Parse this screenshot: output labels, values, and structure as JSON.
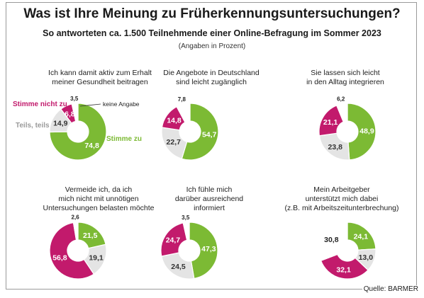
{
  "header": {
    "title": "Was ist Ihre Meinung zu Früherkennungsuntersuchungen?",
    "subtitle": "So antworteten ca. 1.500 Teilnehmende einer Online-Befragung im Sommer 2023",
    "note": "(Angaben in Prozent)"
  },
  "colors": {
    "stimme_zu": "#7cba34",
    "teils_teils": "#e4e4e4",
    "stimme_nicht_zu": "#c21a6c",
    "keine_angabe": "#ffffff"
  },
  "legend": {
    "stimme_zu": "Stimme zu",
    "teils_teils": "Teils, teils",
    "stimme_nicht_zu": "Stimme nicht zu",
    "keine_angabe": "keine Angabe"
  },
  "questions": [
    "Ich kann damit aktiv zum Erhalt\nmeiner Gesundheit beitragen",
    "Die Angebote in Deutschland\nsind leicht zugänglich",
    "Sie lassen sich leicht\nin den Alltag integrieren",
    "Vermeide ich, da ich\nmich nicht mit unnötigen\nUntersuchungen belasten möchte",
    "Ich fühle mich\ndarüber ausreichend\ninformiert",
    "Mein Arbeitgeber\nunterstützt mich dabei\n(z.B. mit Arbeitszeitunterbrechung)"
  ],
  "chart_data": [
    {
      "type": "pie",
      "title": "Ich kann damit aktiv zum Erhalt meiner Gesundheit beitragen",
      "categories": [
        "Stimme zu",
        "Teils, teils",
        "Stimme nicht zu",
        "keine Angabe"
      ],
      "values": [
        74.8,
        14.9,
        6.8,
        3.5
      ],
      "labels": [
        "74,8",
        "14,9",
        "6,8",
        "3,5"
      ]
    },
    {
      "type": "pie",
      "title": "Die Angebote in Deutschland sind leicht zugänglich",
      "categories": [
        "Stimme zu",
        "Teils, teils",
        "Stimme nicht zu",
        "keine Angabe"
      ],
      "values": [
        54.7,
        22.7,
        14.8,
        7.8
      ],
      "labels": [
        "54,7",
        "22,7",
        "14,8",
        "7,8"
      ]
    },
    {
      "type": "pie",
      "title": "Sie lassen sich leicht in den Alltag integrieren",
      "categories": [
        "Stimme zu",
        "Teils, teils",
        "Stimme nicht zu",
        "keine Angabe"
      ],
      "values": [
        48.9,
        23.8,
        21.1,
        6.2
      ],
      "labels": [
        "48,9",
        "23,8",
        "21,1",
        "6,2"
      ]
    },
    {
      "type": "pie",
      "title": "Vermeide ich, da ich mich nicht mit unnötigen Untersuchungen belasten möchte",
      "categories": [
        "Stimme zu",
        "Teils, teils",
        "Stimme nicht zu",
        "keine Angabe"
      ],
      "values": [
        21.5,
        19.1,
        56.8,
        2.6
      ],
      "labels": [
        "21,5",
        "19,1",
        "56,8",
        "2,6"
      ]
    },
    {
      "type": "pie",
      "title": "Ich fühle mich darüber ausreichend informiert",
      "categories": [
        "Stimme zu",
        "Teils, teils",
        "Stimme nicht zu",
        "keine Angabe"
      ],
      "values": [
        47.3,
        24.5,
        24.7,
        3.5
      ],
      "labels": [
        "47,3",
        "24,5",
        "24,7",
        "3,5"
      ]
    },
    {
      "type": "pie",
      "title": "Mein Arbeitgeber unterstützt mich dabei (z.B. mit Arbeitszeitunterbrechung)",
      "categories": [
        "Stimme zu",
        "Teils, teils",
        "Stimme nicht zu",
        "keine Angabe"
      ],
      "values": [
        24.1,
        13.0,
        32.1,
        30.8
      ],
      "labels": [
        "24,1",
        "13,0",
        "32,1",
        "30,8"
      ]
    }
  ],
  "source": "Quelle: BARMER"
}
